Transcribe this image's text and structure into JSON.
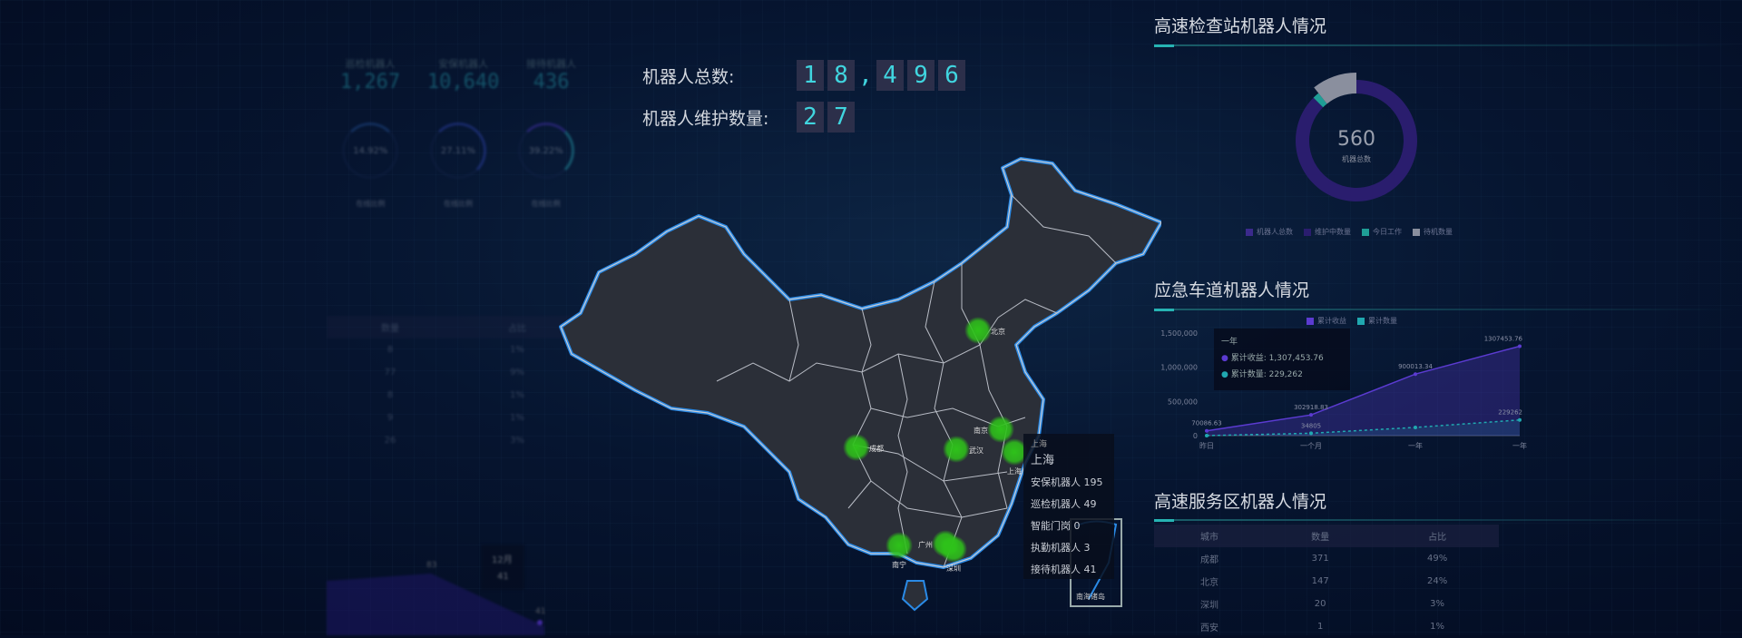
{
  "totals": {
    "total_label": "机器人总数:",
    "total_digits": [
      "1",
      "8",
      ",",
      "4",
      "9",
      "6"
    ],
    "maint_label": "机器人维护数量:",
    "maint_digits": [
      "2",
      "7"
    ]
  },
  "left_panel": {
    "stats": [
      {
        "label": "巡检机器人",
        "value": "1,267"
      },
      {
        "label": "安保机器人",
        "value": "10,640"
      },
      {
        "label": "接待机器人",
        "value": "436"
      }
    ],
    "rings": [
      {
        "pct_text": "14.92%",
        "pct": 14.92
      },
      {
        "pct_text": "27.11%",
        "pct": 27.11
      },
      {
        "pct_text": "39.22%",
        "pct": 39.22
      }
    ],
    "ring_legends": [
      "在线比例",
      "在线比例",
      "在线比例"
    ],
    "table": {
      "headers": [
        "数量",
        "占比"
      ],
      "rows": [
        [
          "8",
          "1%"
        ],
        [
          "77",
          "9%"
        ],
        [
          "8",
          "1%"
        ],
        [
          "9",
          "1%"
        ],
        [
          "26",
          "3%"
        ]
      ]
    },
    "area_chart": {
      "labels": [
        "83",
        "41"
      ],
      "tooltip_title": "12月",
      "tooltip_value": "41"
    }
  },
  "map": {
    "cities": [
      {
        "name": "北京"
      },
      {
        "name": "成都"
      },
      {
        "name": "武汉"
      },
      {
        "name": "南京"
      },
      {
        "name": "上海"
      },
      {
        "name": "南宁"
      },
      {
        "name": "广州"
      },
      {
        "name": "深圳"
      }
    ],
    "marker_color": "#2ec21a",
    "tooltip": {
      "title_small": "上海",
      "title": "上海",
      "lines": [
        "安保机器人 195",
        "巡检机器人 49",
        "智能门岗 0",
        "执勤机器人 3",
        "接待机器人 41"
      ]
    },
    "inset_label": "南海诸岛"
  },
  "checkpoint": {
    "title": "高速检查站机器人情况",
    "center_value": "560",
    "center_label": "机器总数",
    "legend": [
      {
        "label": "机器人总数",
        "color": "#3b2a8c"
      },
      {
        "label": "维护中数量",
        "color": "#2a1d6e"
      },
      {
        "label": "今日工作",
        "color": "#1f9e96"
      },
      {
        "label": "待机数量",
        "color": "#8a8f9e"
      }
    ],
    "slices": [
      {
        "value": 490,
        "color": "#2a1d6e"
      },
      {
        "value": 10,
        "color": "#1f9e96"
      },
      {
        "value": 60,
        "color": "#8a8f9e"
      }
    ]
  },
  "emergency": {
    "title": "应急车道机器人情况",
    "chart_data": {
      "type": "area",
      "categories": [
        "昨日",
        "一个月",
        "一年",
        "一年"
      ],
      "y_ticks": [
        "1,500,000",
        "1,000,000",
        "500,000",
        "0"
      ],
      "ylim": [
        0,
        1500000
      ],
      "series": [
        {
          "name": "累计收益",
          "color": "#5b3bd1",
          "values": [
            70086.63,
            302918.83,
            900013.34,
            1307453.76
          ],
          "labels": [
            "70086.63",
            "302918.83",
            "900013.34",
            "1307453.76"
          ]
        },
        {
          "name": "累计数量",
          "color": "#20a8b0",
          "values": [
            0,
            34805,
            120000,
            229262
          ],
          "labels": [
            "",
            "34805",
            "",
            "229262"
          ]
        }
      ],
      "tooltip": {
        "title": "一年",
        "lines": [
          "累计收益: 1,307,453.76",
          "累计数量: 229,262"
        ]
      }
    }
  },
  "service": {
    "title": "高速服务区机器人情况",
    "headers": [
      "城市",
      "数量",
      "占比"
    ],
    "rows": [
      [
        "成都",
        "371",
        "49%"
      ],
      [
        "北京",
        "147",
        "24%"
      ],
      [
        "深圳",
        "20",
        "3%"
      ],
      [
        "西安",
        "1",
        "1%"
      ]
    ]
  }
}
